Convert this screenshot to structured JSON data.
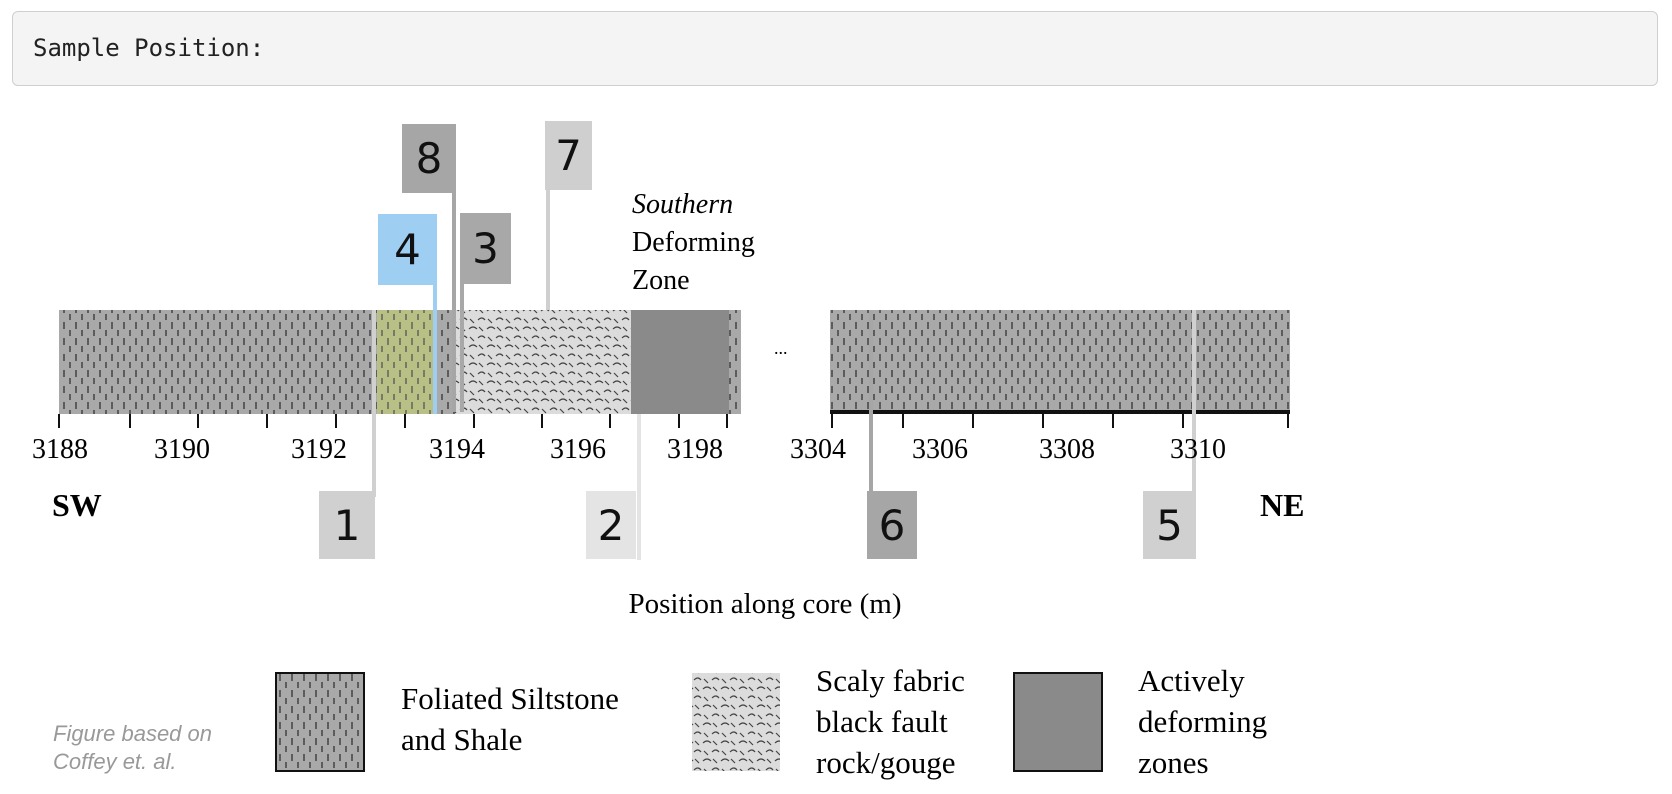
{
  "readout": {
    "label": "Sample Position:"
  },
  "figure": {
    "zone_note": {
      "italic": "Southern",
      "line2": "Deforming",
      "line3": "Zone"
    },
    "xlabel": "Position along core (m)",
    "dir_left": "SW",
    "dir_right": "NE",
    "gap_mark": "...",
    "ticks_left": [
      "3188",
      "3190",
      "3192",
      "3194",
      "3196",
      "3198"
    ],
    "ticks_right": [
      "3304",
      "3306",
      "3308",
      "3310"
    ],
    "markers": [
      {
        "label": "1",
        "color": "#d0d0d0"
      },
      {
        "label": "2",
        "color": "#e4e4e4"
      },
      {
        "label": "3",
        "color": "#a8a8a8"
      },
      {
        "label": "4",
        "color": "#9ecff2"
      },
      {
        "label": "5",
        "color": "#d0d0d0"
      },
      {
        "label": "6",
        "color": "#a6a6a6"
      },
      {
        "label": "7",
        "color": "#cfcfcf"
      },
      {
        "label": "8",
        "color": "#a6a6a6"
      }
    ]
  },
  "legend": {
    "foliated": {
      "line1": "Foliated Siltstone",
      "line2": "and Shale"
    },
    "scaly": {
      "line1": "Scaly fabric",
      "line2": "black fault",
      "line3": "rock/gouge"
    },
    "active": {
      "line1": "Actively",
      "line2": "deforming",
      "line3": "zones"
    }
  },
  "credit": {
    "line1": "Figure based on",
    "line2": "Coffey et. al."
  },
  "colors": {
    "foliated": "#a9a9a9",
    "scaly": "#d9d9d9",
    "active": "#8a8a8a",
    "highlight": "#b9c086"
  }
}
